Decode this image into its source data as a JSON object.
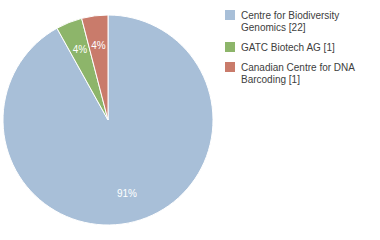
{
  "chart_data": {
    "type": "pie",
    "categories": [
      "Centre for Biodiversity\nGenomics [22]",
      "GATC Biotech AG [1]",
      "Canadian Centre for DNA\nBarcoding [1]"
    ],
    "values": [
      91,
      4,
      4
    ],
    "value_labels": [
      "91%",
      "4%",
      "4%"
    ],
    "colors": [
      "#a8bfd8",
      "#8db56a",
      "#c97b6b"
    ],
    "data_labels": true,
    "legend": "right"
  }
}
